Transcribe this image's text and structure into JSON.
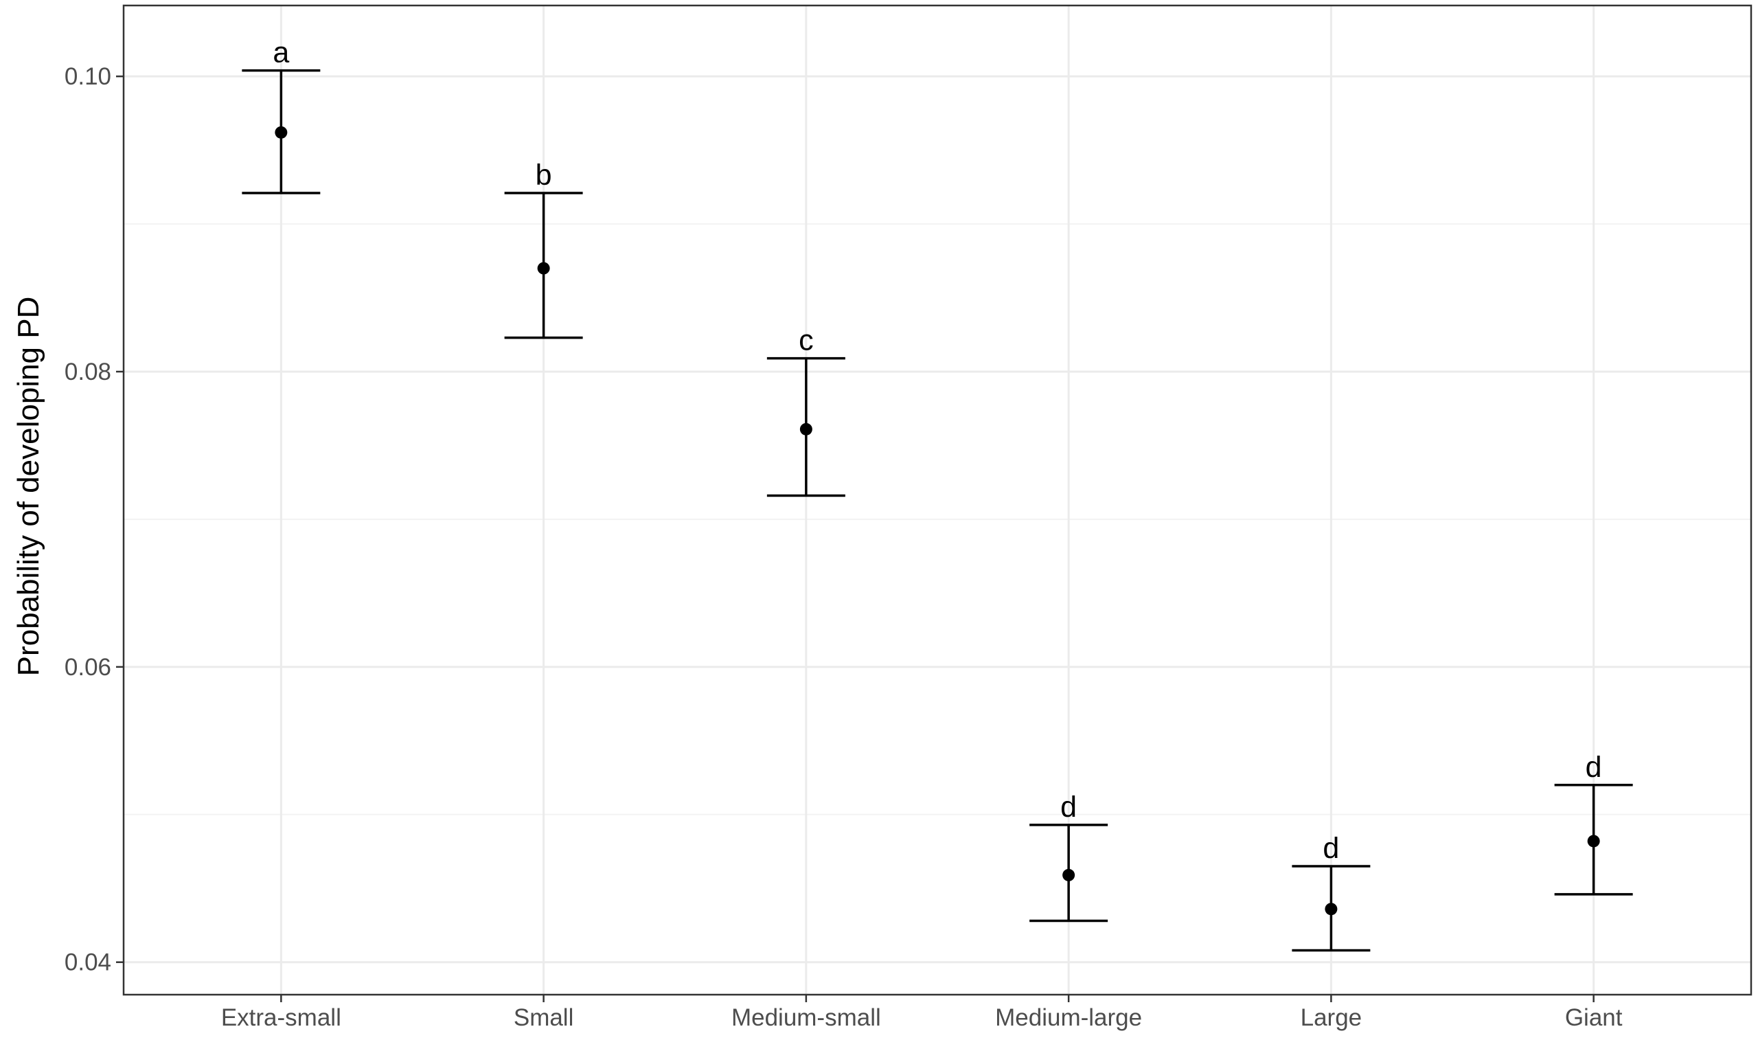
{
  "chart_data": {
    "type": "scatter",
    "subtype": "point-with-errorbars",
    "title": "",
    "xlabel": "",
    "ylabel": "Probability of developing PD",
    "ylim": [
      0.0378,
      0.1048
    ],
    "yticks": [
      0.04,
      0.06,
      0.08,
      0.1
    ],
    "ytick_labels": [
      "0.04",
      "0.06",
      "0.08",
      "0.10"
    ],
    "grid": true,
    "categories": [
      "Extra-small",
      "Small",
      "Medium-small",
      "Medium-large",
      "Large",
      "Giant"
    ],
    "points": [
      {
        "category": "Extra-small",
        "estimate": 0.0962,
        "lower": 0.0921,
        "upper": 0.1004,
        "letter": "a"
      },
      {
        "category": "Small",
        "estimate": 0.087,
        "lower": 0.0823,
        "upper": 0.0921,
        "letter": "b"
      },
      {
        "category": "Medium-small",
        "estimate": 0.0761,
        "lower": 0.0716,
        "upper": 0.0809,
        "letter": "c"
      },
      {
        "category": "Medium-large",
        "estimate": 0.0459,
        "lower": 0.0428,
        "upper": 0.0493,
        "letter": "d"
      },
      {
        "category": "Large",
        "estimate": 0.0436,
        "lower": 0.0408,
        "upper": 0.0465,
        "letter": "d"
      },
      {
        "category": "Giant",
        "estimate": 0.0482,
        "lower": 0.0446,
        "upper": 0.052,
        "letter": "d"
      }
    ],
    "colors": {
      "panel_border": "#333333",
      "grid_major": "#ebebeb",
      "grid_minor": "#f3f3f3",
      "points": "#000000",
      "tick_text": "#4d4d4d"
    }
  }
}
